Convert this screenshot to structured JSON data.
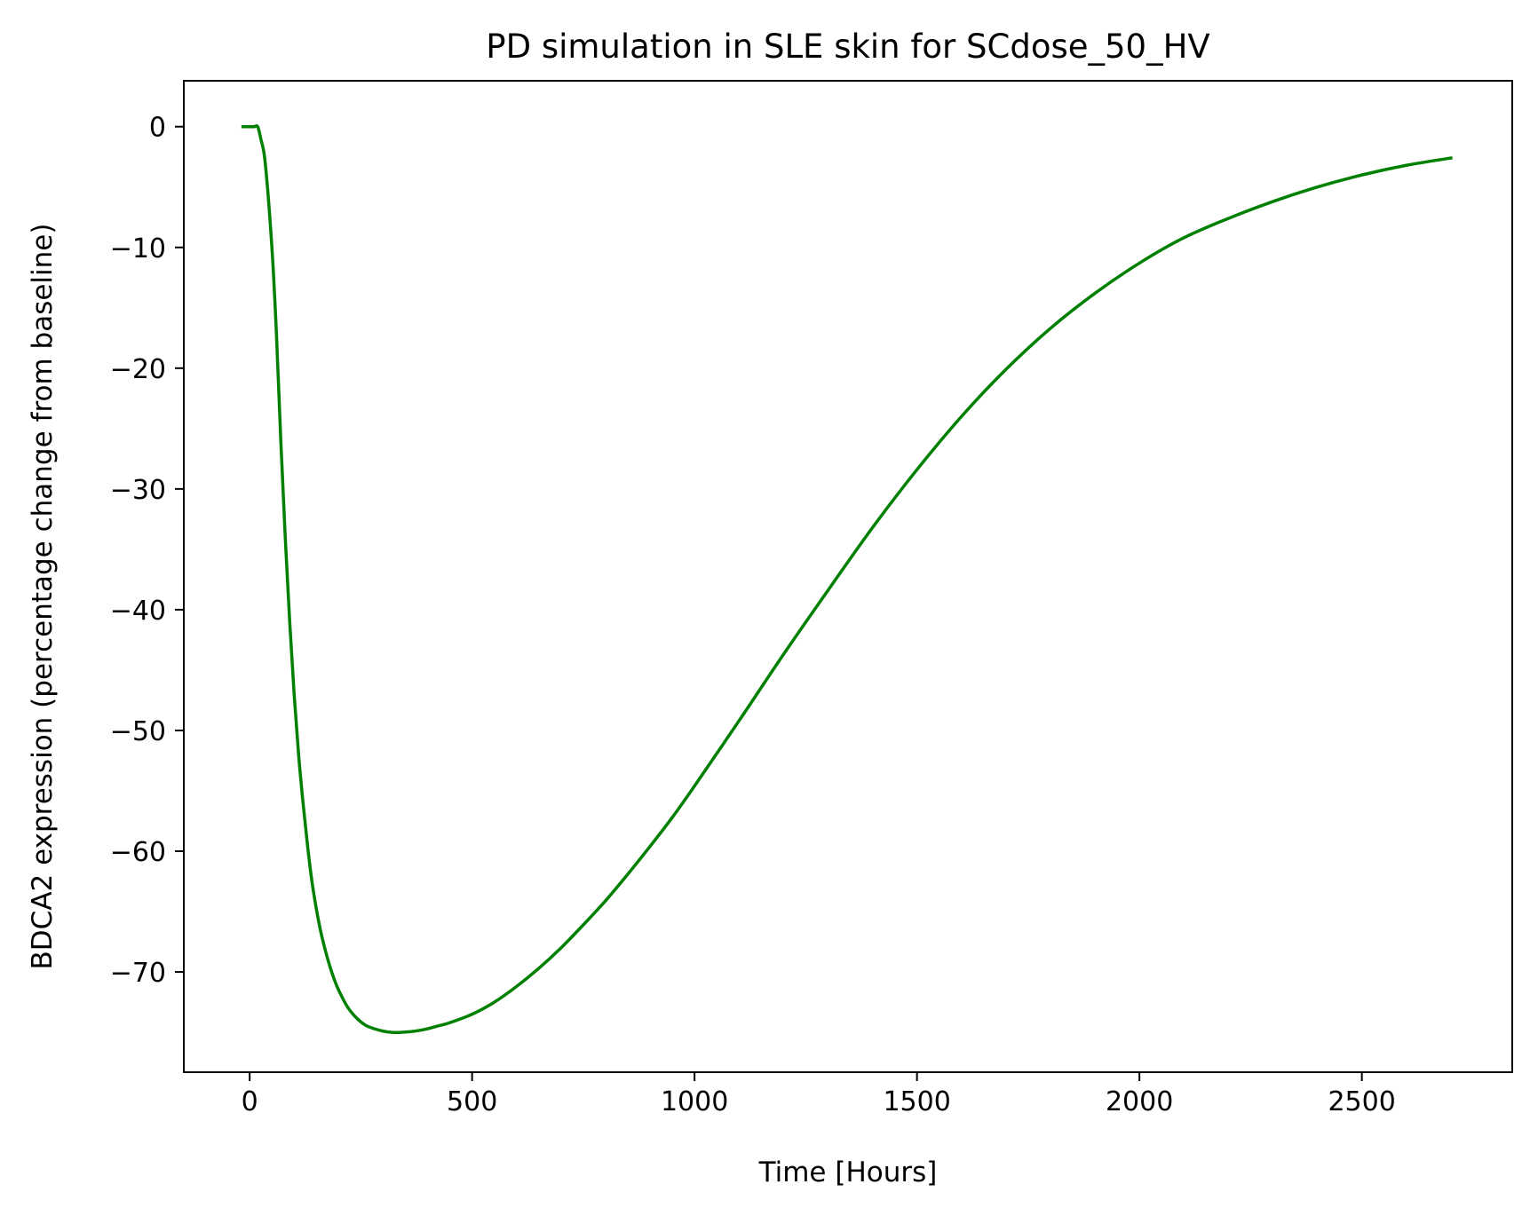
{
  "chart_data": {
    "type": "line",
    "title": "PD simulation in SLE skin for SCdose_50_HV",
    "xlabel": "Time [Hours]",
    "ylabel": "BDCA2 expression (percentage change from baseline)",
    "xlim": [
      -148,
      2838
    ],
    "ylim": [
      -78.3,
      3.8
    ],
    "xticks": [
      0,
      500,
      1000,
      1500,
      2000,
      2500
    ],
    "xtick_labels": [
      "0",
      "500",
      "1000",
      "1500",
      "2000",
      "2500"
    ],
    "yticks": [
      0,
      -10,
      -20,
      -30,
      -40,
      -50,
      -60,
      -70
    ],
    "ytick_labels": [
      "0",
      "−10",
      "−20",
      "−30",
      "−40",
      "−50",
      "−60",
      "−70"
    ],
    "grid": false,
    "series": [
      {
        "color": "#008000",
        "x": [
          -15,
          0,
          10,
          18,
          25,
          35,
          50,
          60,
          70,
          80,
          90,
          100,
          110,
          120,
          130,
          140,
          150,
          160,
          170,
          180,
          190,
          200,
          220,
          240,
          260,
          280,
          300,
          320,
          340,
          360,
          380,
          400,
          420,
          450,
          500,
          550,
          600,
          650,
          700,
          750,
          800,
          850,
          900,
          950,
          1000,
          1100,
          1200,
          1300,
          1400,
          1500,
          1600,
          1700,
          1800,
          1900,
          2000,
          2100,
          2200,
          2300,
          2400,
          2500,
          2600,
          2700
        ],
        "y": [
          0,
          0,
          0,
          0,
          -1,
          -3,
          -10,
          -17,
          -26,
          -34,
          -41,
          -47,
          -52,
          -56,
          -59.5,
          -62.5,
          -64.8,
          -66.7,
          -68.2,
          -69.5,
          -70.6,
          -71.5,
          -72.9,
          -73.8,
          -74.4,
          -74.7,
          -74.9,
          -75.0,
          -75.0,
          -74.95,
          -74.85,
          -74.7,
          -74.5,
          -74.2,
          -73.5,
          -72.5,
          -71.2,
          -69.7,
          -68.0,
          -66.1,
          -64.1,
          -61.9,
          -59.6,
          -57.2,
          -54.6,
          -49.2,
          -43.7,
          -38.4,
          -33.2,
          -28.4,
          -24.0,
          -20.1,
          -16.7,
          -13.8,
          -11.3,
          -9.2,
          -7.6,
          -6.2,
          -5.0,
          -4.0,
          -3.2,
          -2.6
        ]
      }
    ]
  }
}
